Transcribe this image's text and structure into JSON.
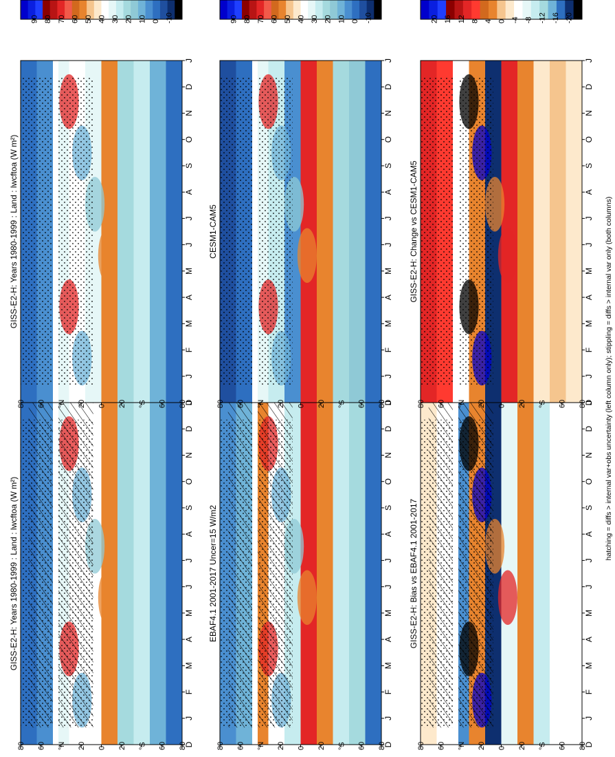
{
  "figure": {
    "footnote": "hatching = diffs > internal var+obs uncertainty (left column only); stippling = diffs > internal var only (both columns)",
    "month_labels": [
      "D",
      "J",
      "F",
      "M",
      "A",
      "M",
      "J",
      "J",
      "A",
      "S",
      "O",
      "N",
      "D",
      "J"
    ],
    "lat_labels": [
      "80",
      "60",
      "°N",
      "20",
      "0",
      "20",
      "°S",
      "60",
      "80"
    ]
  },
  "colors": {
    "abs_palette": [
      "#0000cc",
      "#0a1fe0",
      "#1f3fff",
      "#8b0000",
      "#b81414",
      "#e32626",
      "#f25a4a",
      "#d2691e",
      "#e8842e",
      "#f5c58e",
      "#fde9cc",
      "#ffffff",
      "#e6f7f7",
      "#c6ecef",
      "#a5dade",
      "#8fc9d6",
      "#6fb3d8",
      "#4a8fd0",
      "#2e6fc0",
      "#1f4f9f",
      "#0e2f6f",
      "#000000"
    ],
    "diff_palette": [
      "#0000cc",
      "#0a1fe0",
      "#1f3fff",
      "#8b0000",
      "#b81414",
      "#e32626",
      "#ff3a30",
      "#d2691e",
      "#e8842e",
      "#f5c58e",
      "#fde9cc",
      "#ffffff",
      "#e6f7f7",
      "#c6ecef",
      "#a5dade",
      "#6fb3d8",
      "#2e6fc0",
      "#0e2f6f",
      "#000000"
    ]
  },
  "chart_data": [
    {
      "type": "heatmap",
      "title": "GISS-E2-H: Years 1980-1999 : Land : lwcftoa (W m²)",
      "x": [
        "D",
        "J",
        "F",
        "M",
        "A",
        "M",
        "J",
        "J",
        "A",
        "S",
        "O",
        "N",
        "D",
        "J"
      ],
      "y": [
        "80",
        "60",
        "°N",
        "20",
        "0",
        "20",
        "°S",
        "60",
        "80"
      ],
      "colorbar_ticks": [
        "90",
        "80",
        "70",
        "60",
        "50",
        "40",
        "30",
        "20",
        "10",
        "0",
        "-10"
      ],
      "hatching": true,
      "stippling": true
    },
    {
      "type": "heatmap",
      "title": "GISS-E2-H: Years 1980-1999 : Land : lwcftoa (W m²)",
      "x": [
        "D",
        "J",
        "F",
        "M",
        "A",
        "M",
        "J",
        "J",
        "A",
        "S",
        "O",
        "N",
        "D",
        "J"
      ],
      "y": [
        "80",
        "60",
        "°N",
        "20",
        "0",
        "20",
        "°S",
        "60",
        "80"
      ],
      "colorbar_ticks": [
        "90",
        "80",
        "70",
        "60",
        "50",
        "40",
        "30",
        "20",
        "10",
        "0",
        "-10"
      ],
      "hatching": false,
      "stippling": true
    },
    {
      "type": "heatmap",
      "title": "EBAF4.1 2001-2017 Uncer=15 W/m2",
      "x": [
        "D",
        "J",
        "F",
        "M",
        "A",
        "M",
        "J",
        "J",
        "A",
        "S",
        "O",
        "N",
        "D",
        "J"
      ],
      "y": [
        "80",
        "60",
        "°N",
        "20",
        "0",
        "20",
        "°S",
        "60",
        "80"
      ],
      "colorbar_ticks": [
        "90",
        "80",
        "70",
        "60",
        "50",
        "40",
        "30",
        "20",
        "10",
        "0",
        "-10"
      ],
      "hatching": true,
      "stippling": true
    },
    {
      "type": "heatmap",
      "title": "CESM1-CAM5",
      "x": [
        "D",
        "J",
        "F",
        "M",
        "A",
        "M",
        "J",
        "J",
        "A",
        "S",
        "O",
        "N",
        "D",
        "J"
      ],
      "y": [
        "80",
        "60",
        "°N",
        "20",
        "0",
        "20",
        "°S",
        "60",
        "80"
      ],
      "colorbar_ticks": [
        "90",
        "80",
        "70",
        "60",
        "50",
        "40",
        "30",
        "20",
        "10",
        "0",
        "-10"
      ],
      "hatching": false,
      "stippling": true
    },
    {
      "type": "heatmap",
      "title": "GISS-E2-H: Bias vs EBAF4.1 2001-2017",
      "x": [
        "D",
        "J",
        "F",
        "M",
        "A",
        "M",
        "J",
        "J",
        "A",
        "S",
        "O",
        "N",
        "D",
        "J"
      ],
      "y": [
        "80",
        "60",
        "°N",
        "20",
        "0",
        "20",
        "°S",
        "60",
        "80"
      ],
      "colorbar_ticks": [
        "20",
        "16",
        "12",
        "8",
        "4",
        "0",
        "-4",
        "-8",
        "-12",
        "-16",
        "-20"
      ],
      "hatching": true,
      "stippling": true
    },
    {
      "type": "heatmap",
      "title": "GISS-E2-H: Change vs CESM1-CAM5",
      "x": [
        "D",
        "J",
        "F",
        "M",
        "A",
        "M",
        "J",
        "J",
        "A",
        "S",
        "O",
        "N",
        "D",
        "J"
      ],
      "y": [
        "80",
        "60",
        "°N",
        "20",
        "0",
        "20",
        "°S",
        "60",
        "80"
      ],
      "colorbar_ticks": [
        "20",
        "16",
        "12",
        "8",
        "4",
        "0",
        "-4",
        "-8",
        "-12",
        "-16",
        "-20"
      ],
      "hatching": false,
      "stippling": true
    }
  ]
}
